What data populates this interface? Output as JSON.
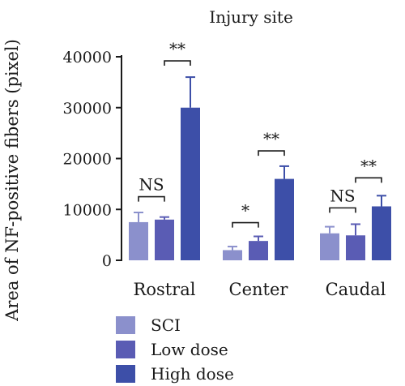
{
  "chart_data": {
    "type": "bar",
    "title": "Injury site",
    "ylabel": "Area of NF-positive fibers (pixel)",
    "xlabel": "",
    "ylim": [
      0,
      40000
    ],
    "yticks": [
      0,
      10000,
      20000,
      30000,
      40000
    ],
    "categories": [
      "Rostral",
      "Center",
      "Caudal"
    ],
    "series": [
      {
        "name": "SCI",
        "color": "#8b90cc",
        "values": [
          7500,
          2000,
          5300
        ],
        "errors": [
          1900,
          700,
          1300
        ]
      },
      {
        "name": "Low dose",
        "color": "#5a5cb4",
        "values": [
          8000,
          3800,
          4900
        ],
        "errors": [
          500,
          900,
          2200
        ]
      },
      {
        "name": "High dose",
        "color": "#3d4fa8",
        "values": [
          30000,
          16000,
          10600
        ],
        "errors": [
          6000,
          2500,
          2100
        ]
      }
    ],
    "significance": [
      {
        "category": 0,
        "from": 0,
        "to": 1,
        "label": "NS",
        "y": 12500
      },
      {
        "category": 0,
        "from": 1,
        "to": 2,
        "label": "**",
        "y": 39200
      },
      {
        "category": 1,
        "from": 0,
        "to": 1,
        "label": "*",
        "y": 7400
      },
      {
        "category": 1,
        "from": 1,
        "to": 2,
        "label": "**",
        "y": 21500
      },
      {
        "category": 2,
        "from": 0,
        "to": 1,
        "label": "NS",
        "y": 10300
      },
      {
        "category": 2,
        "from": 1,
        "to": 2,
        "label": "**",
        "y": 16200
      }
    ],
    "legend": {
      "position": "bottom-left"
    }
  }
}
